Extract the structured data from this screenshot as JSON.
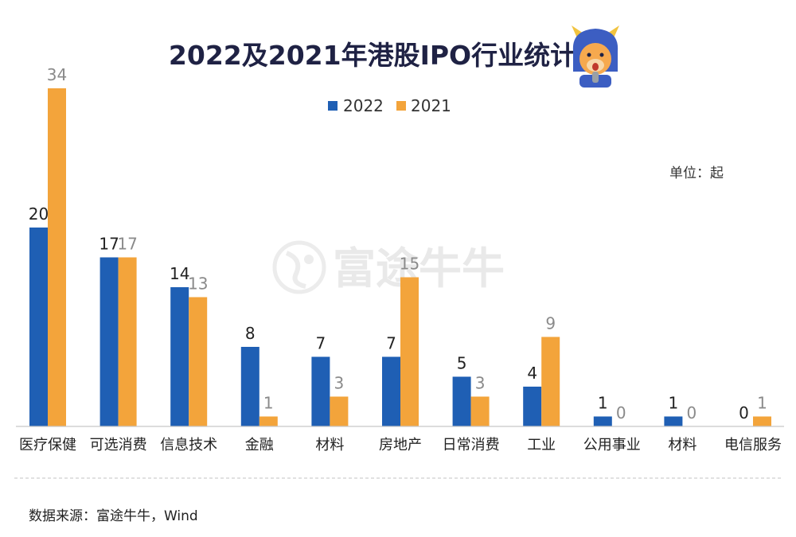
{
  "chart_data": {
    "type": "bar",
    "title": "2022及2021年港股IPO行业统计",
    "unit": "单位：起",
    "categories": [
      "医疗保健",
      "可选消费",
      "信息技术",
      "金融",
      "材料",
      "房地产",
      "日常消费",
      "工业",
      "公用事业",
      "材料",
      "电信服务"
    ],
    "series": [
      {
        "name": "2022",
        "values": [
          20,
          17,
          14,
          8,
          7,
          7,
          5,
          4,
          1,
          1,
          0
        ],
        "color": "#1f5fb4"
      },
      {
        "name": "2021",
        "values": [
          34,
          17,
          13,
          1,
          3,
          15,
          3,
          9,
          0,
          0,
          1
        ],
        "color": "#f3a43b"
      }
    ],
    "ylim": [
      0,
      34
    ],
    "grid": false,
    "legend_position": "top-center"
  },
  "source": "数据来源：富途牛牛，Wind",
  "watermark": "富途牛牛",
  "mascot_icon": "bull-mascot-icon"
}
